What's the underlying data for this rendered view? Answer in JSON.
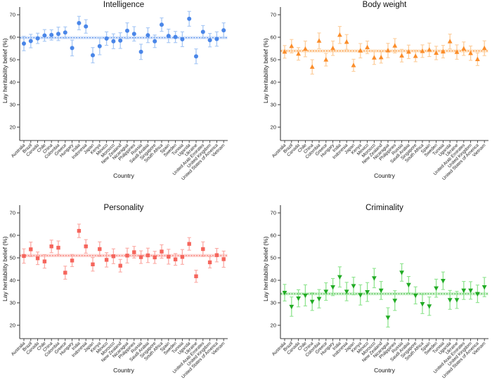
{
  "figure": {
    "ylabel": "Lay heritability belief (%)",
    "xlabel": "Country",
    "y_ticks": [
      20,
      30,
      40,
      50,
      60,
      70
    ],
    "countries": [
      "Australia",
      "Brazil",
      "Canada",
      "Chile",
      "China",
      "Colombia",
      "Greece",
      "Hungary",
      "India",
      "Indonesia",
      "Japan",
      "Kenya",
      "Mexico",
      "Morocco",
      "New Zealand",
      "Nicaragua",
      "Philippines",
      "Russia",
      "Saudi Arabia",
      "Singapore",
      "South Africa",
      "Spain",
      "Sweden",
      "Tunisia",
      "Uganda",
      "Ukraine",
      "United Arab Emirates",
      "United Kingdom",
      "United States of America",
      "Vietnam"
    ]
  },
  "chart_data": [
    {
      "type": "scatter",
      "title": "Intelligence",
      "marker": "circle",
      "xlabel": "Country",
      "ylabel": "Lay heritability belief (%)",
      "ylim": [
        14,
        75
      ],
      "grid": false,
      "color": "#4a86e8",
      "error_bar_color": "#a6c7f5",
      "band_color": "#d9e6fb",
      "mean": 59.8,
      "mean_band_halfwidth": 0.7,
      "categories": [
        "Australia",
        "Brazil",
        "Canada",
        "Chile",
        "China",
        "Colombia",
        "Greece",
        "Hungary",
        "India",
        "Indonesia",
        "Japan",
        "Kenya",
        "Mexico",
        "Morocco",
        "New Zealand",
        "Nicaragua",
        "Philippines",
        "Russia",
        "Saudi Arabia",
        "Singapore",
        "South Africa",
        "Spain",
        "Sweden",
        "Tunisia",
        "Uganda",
        "Ukraine",
        "United Arab Emirates",
        "United Kingdom",
        "United States of America",
        "Vietnam"
      ],
      "values": [
        57.2,
        58.3,
        59.5,
        60.8,
        61.0,
        61.5,
        62.1,
        55.2,
        66.3,
        64.8,
        52.0,
        56.0,
        59.4,
        58.2,
        58.5,
        62.9,
        61.5,
        53.5,
        60.9,
        58.2,
        65.6,
        60.6,
        60.1,
        59.1,
        68.2,
        51.5,
        62.4,
        58.7,
        59.2,
        63.1
      ],
      "ci": [
        3.2,
        3.0,
        2.3,
        2.6,
        2.3,
        3.0,
        2.5,
        3.5,
        3.0,
        3.0,
        3.4,
        3.8,
        3.0,
        3.3,
        3.5,
        3.5,
        3.2,
        3.4,
        3.3,
        2.8,
        3.0,
        3.0,
        2.5,
        3.3,
        3.3,
        3.3,
        2.8,
        3.0,
        3.2,
        3.3
      ]
    },
    {
      "type": "scatter",
      "title": "Body weight",
      "marker": "triangle-up",
      "xlabel": "Country",
      "ylabel": "Lay heritability belief (%)",
      "ylim": [
        14,
        75
      ],
      "grid": false,
      "color": "#fb8d2a",
      "error_bar_color": "#fdcd9a",
      "band_color": "#fee6cc",
      "mean": 53.9,
      "mean_band_halfwidth": 0.7,
      "categories": [
        "Australia",
        "Brazil",
        "Canada",
        "Chile",
        "China",
        "Colombia",
        "Greece",
        "Hungary",
        "India",
        "Indonesia",
        "Japan",
        "Kenya",
        "Mexico",
        "Morocco",
        "New Zealand",
        "Nicaragua",
        "Philippines",
        "Russia",
        "Saudi Arabia",
        "Singapore",
        "South Africa",
        "Spain",
        "Sweden",
        "Tunisia",
        "Uganda",
        "Ukraine",
        "United Arab Emirates",
        "United Kingdom",
        "United States of America",
        "Vietnam"
      ],
      "values": [
        53.5,
        56.0,
        52.6,
        54.8,
        46.8,
        58.4,
        50.0,
        55.1,
        61.0,
        57.9,
        47.5,
        54.0,
        55.5,
        50.9,
        51.0,
        54.1,
        56.2,
        51.8,
        53.5,
        51.6,
        53.8,
        54.4,
        53.0,
        53.6,
        58.1,
        53.4,
        54.9,
        52.9,
        50.2,
        55.1
      ],
      "ci": [
        2.8,
        3.0,
        2.8,
        3.5,
        3.2,
        3.5,
        2.8,
        3.2,
        3.8,
        3.3,
        2.7,
        3.2,
        2.8,
        3.0,
        2.5,
        3.2,
        3.2,
        2.8,
        3.0,
        2.5,
        2.8,
        3.0,
        3.0,
        2.8,
        3.3,
        3.2,
        3.0,
        3.2,
        2.8,
        3.3
      ]
    },
    {
      "type": "scatter",
      "title": "Personality",
      "marker": "square",
      "xlabel": "Country",
      "ylabel": "Lay heritability belief (%)",
      "ylim": [
        14,
        75
      ],
      "grid": false,
      "color": "#f5655c",
      "error_bar_color": "#fbaaa4",
      "band_color": "#fdd7d4",
      "mean": 51.0,
      "mean_band_halfwidth": 0.7,
      "categories": [
        "Australia",
        "Brazil",
        "Canada",
        "Chile",
        "China",
        "Colombia",
        "Greece",
        "Hungary",
        "India",
        "Indonesia",
        "Japan",
        "Kenya",
        "Mexico",
        "Morocco",
        "New Zealand",
        "Nicaragua",
        "Philippines",
        "Russia",
        "Saudi Arabia",
        "Singapore",
        "South Africa",
        "Spain",
        "Sweden",
        "Tunisia",
        "Uganda",
        "Ukraine",
        "United Arab Emirates",
        "United Kingdom",
        "United States of America",
        "Vietnam"
      ],
      "values": [
        50.8,
        53.8,
        49.8,
        48.4,
        55.1,
        54.5,
        43.4,
        48.8,
        62.0,
        55.1,
        47.1,
        53.9,
        49.1,
        50.7,
        46.5,
        51.0,
        52.5,
        50.3,
        51.1,
        50.2,
        52.8,
        50.5,
        49.3,
        50.4,
        56.2,
        41.8,
        53.9,
        48.0,
        51.2,
        49.4
      ],
      "ci": [
        3.2,
        3.2,
        2.8,
        3.0,
        2.8,
        3.0,
        2.9,
        2.7,
        3.0,
        3.0,
        3.0,
        3.2,
        3.2,
        3.3,
        2.8,
        3.3,
        2.6,
        2.8,
        3.2,
        2.7,
        3.0,
        3.3,
        2.6,
        3.3,
        2.8,
        2.7,
        3.2,
        2.5,
        3.0,
        3.6
      ]
    },
    {
      "type": "scatter",
      "title": "Criminality",
      "marker": "triangle-down",
      "xlabel": "Country",
      "ylabel": "Lay heritability belief (%)",
      "ylim": [
        14,
        75
      ],
      "grid": false,
      "color": "#21ab24",
      "error_bar_color": "#8fe48f",
      "band_color": "#cff2cf",
      "mean": 34.0,
      "mean_band_halfwidth": 0.7,
      "categories": [
        "Australia",
        "Brazil",
        "Canada",
        "Chile",
        "China",
        "Colombia",
        "Greece",
        "Hungary",
        "India",
        "Indonesia",
        "Japan",
        "Kenya",
        "Mexico",
        "Morocco",
        "New Zealand",
        "Nicaragua",
        "Philippines",
        "Russia",
        "Saudi Arabia",
        "Singapore",
        "South Africa",
        "Spain",
        "Sweden",
        "Tunisia",
        "Uganda",
        "Ukraine",
        "United Arab Emirates",
        "United Kingdom",
        "United States of America",
        "Vietnam"
      ],
      "values": [
        34.5,
        28.3,
        32.0,
        33.3,
        30.5,
        31.8,
        35.0,
        37.0,
        41.5,
        35.0,
        37.5,
        33.5,
        34.8,
        41.0,
        35.5,
        23.5,
        31.0,
        43.5,
        38.0,
        33.3,
        29.5,
        28.5,
        36.5,
        39.8,
        31.3,
        31.3,
        35.5,
        35.5,
        34.0,
        37.0
      ],
      "ci": [
        3.7,
        4.3,
        3.8,
        4.7,
        3.9,
        4.1,
        3.9,
        3.8,
        4.5,
        4.1,
        3.9,
        4.5,
        4.2,
        4.3,
        4.0,
        4.3,
        4.4,
        3.9,
        3.7,
        3.8,
        4.3,
        4.1,
        4.0,
        3.9,
        4.2,
        3.8,
        4.0,
        3.9,
        3.9,
        4.3
      ]
    }
  ]
}
